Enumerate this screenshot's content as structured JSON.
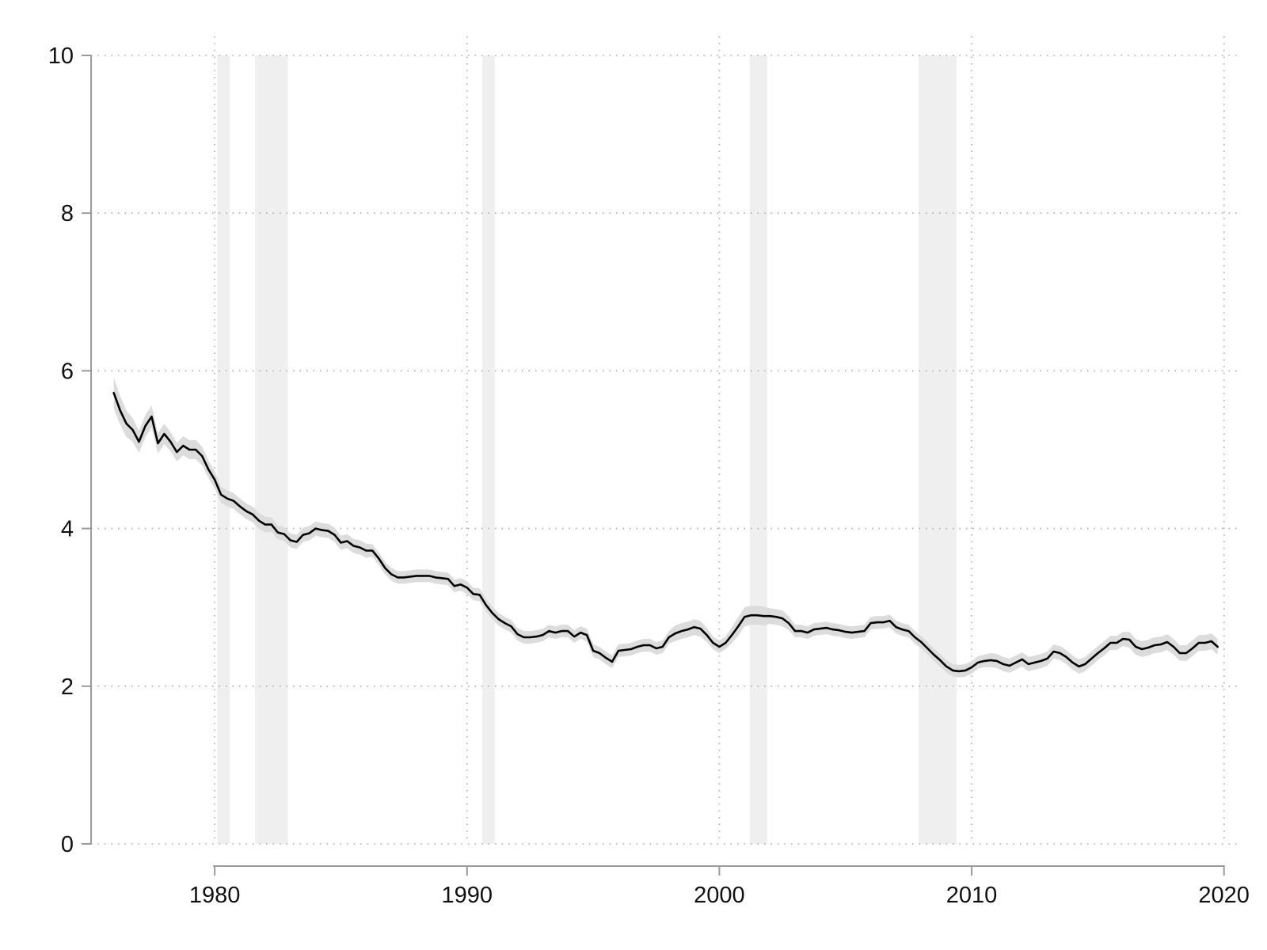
{
  "chart_data": {
    "type": "line",
    "title": "",
    "xlabel": "",
    "ylabel": "",
    "xlim": [
      1975.1,
      2020.7
    ],
    "ylim": [
      0,
      10
    ],
    "grid": true,
    "legend": "none",
    "x_ticks": [
      {
        "value": 1980,
        "label": "1980"
      },
      {
        "value": 1990,
        "label": "1990"
      },
      {
        "value": 2000,
        "label": "2000"
      },
      {
        "value": 2010,
        "label": "2010"
      },
      {
        "value": 2020,
        "label": "2020"
      }
    ],
    "y_ticks": [
      {
        "value": 0,
        "label": "0"
      },
      {
        "value": 2,
        "label": "2"
      },
      {
        "value": 4,
        "label": "4"
      },
      {
        "value": 6,
        "label": "6"
      },
      {
        "value": 8,
        "label": "8"
      },
      {
        "value": 10,
        "label": "10"
      }
    ],
    "shaded_periods": [
      {
        "start": 1980.1,
        "end": 1980.6
      },
      {
        "start": 1981.6,
        "end": 1982.9
      },
      {
        "start": 1990.6,
        "end": 1991.1
      },
      {
        "start": 2001.2,
        "end": 2001.9
      },
      {
        "start": 2007.9,
        "end": 2009.4
      }
    ],
    "series": [
      {
        "x": [
          1976.0,
          1976.25,
          1976.5,
          1976.75,
          1977.0,
          1977.25,
          1977.5,
          1977.75,
          1978.0,
          1978.25,
          1978.5,
          1978.75,
          1979.0,
          1979.25,
          1979.5,
          1979.75,
          1980.0,
          1980.25,
          1980.5,
          1980.75,
          1981.0,
          1981.25,
          1981.5,
          1981.75,
          1982.0,
          1982.25,
          1982.5,
          1982.75,
          1983.0,
          1983.25,
          1983.5,
          1983.75,
          1984.0,
          1984.25,
          1984.5,
          1984.75,
          1985.0,
          1985.25,
          1985.5,
          1985.75,
          1986.0,
          1986.25,
          1986.5,
          1986.75,
          1987.0,
          1987.25,
          1987.5,
          1987.75,
          1988.0,
          1988.25,
          1988.5,
          1988.75,
          1989.0,
          1989.25,
          1989.5,
          1989.75,
          1990.0,
          1990.25,
          1990.5,
          1990.75,
          1991.0,
          1991.25,
          1991.5,
          1991.75,
          1992.0,
          1992.25,
          1992.5,
          1992.75,
          1993.0,
          1993.25,
          1993.5,
          1993.75,
          1994.0,
          1994.25,
          1994.5,
          1994.75,
          1995.0,
          1995.25,
          1995.5,
          1995.75,
          1996.0,
          1996.25,
          1996.5,
          1996.75,
          1997.0,
          1997.25,
          1997.5,
          1997.75,
          1998.0,
          1998.25,
          1998.5,
          1998.75,
          1999.0,
          1999.25,
          1999.5,
          1999.75,
          2000.0,
          2000.25,
          2000.5,
          2000.75,
          2001.0,
          2001.25,
          2001.5,
          2001.75,
          2002.0,
          2002.25,
          2002.5,
          2002.75,
          2003.0,
          2003.25,
          2003.5,
          2003.75,
          2004.0,
          2004.25,
          2004.5,
          2004.75,
          2005.0,
          2005.25,
          2005.5,
          2005.75,
          2006.0,
          2006.25,
          2006.5,
          2006.75,
          2007.0,
          2007.25,
          2007.5,
          2007.75,
          2008.0,
          2008.25,
          2008.5,
          2008.75,
          2009.0,
          2009.25,
          2009.5,
          2009.75,
          2010.0,
          2010.25,
          2010.5,
          2010.75,
          2011.0,
          2011.25,
          2011.5,
          2011.75,
          2012.0,
          2012.25,
          2012.5,
          2012.75,
          2013.0,
          2013.25,
          2013.5,
          2013.75,
          2014.0,
          2014.25,
          2014.5,
          2014.75,
          2015.0,
          2015.25,
          2015.5,
          2015.75,
          2016.0,
          2016.25,
          2016.5,
          2016.75,
          2017.0,
          2017.25,
          2017.5,
          2017.75,
          2018.0,
          2018.25,
          2018.5,
          2018.75,
          2019.0,
          2019.25,
          2019.5,
          2019.75
        ],
        "values": [
          5.72,
          5.5,
          5.33,
          5.25,
          5.1,
          5.3,
          5.42,
          5.08,
          5.2,
          5.1,
          4.97,
          5.05,
          5.0,
          5.0,
          4.92,
          4.75,
          4.62,
          4.43,
          4.38,
          4.35,
          4.28,
          4.22,
          4.18,
          4.1,
          4.05,
          4.05,
          3.95,
          3.93,
          3.85,
          3.83,
          3.92,
          3.94,
          4.0,
          3.98,
          3.97,
          3.92,
          3.82,
          3.84,
          3.78,
          3.76,
          3.72,
          3.72,
          3.62,
          3.5,
          3.42,
          3.38,
          3.38,
          3.39,
          3.4,
          3.4,
          3.4,
          3.38,
          3.37,
          3.36,
          3.27,
          3.29,
          3.25,
          3.17,
          3.16,
          3.03,
          2.93,
          2.85,
          2.8,
          2.76,
          2.66,
          2.62,
          2.62,
          2.63,
          2.65,
          2.7,
          2.68,
          2.7,
          2.7,
          2.63,
          2.68,
          2.65,
          2.45,
          2.42,
          2.36,
          2.31,
          2.45,
          2.46,
          2.47,
          2.5,
          2.52,
          2.52,
          2.48,
          2.5,
          2.62,
          2.67,
          2.7,
          2.72,
          2.75,
          2.73,
          2.65,
          2.55,
          2.5,
          2.55,
          2.65,
          2.76,
          2.88,
          2.9,
          2.9,
          2.89,
          2.89,
          2.88,
          2.86,
          2.8,
          2.7,
          2.7,
          2.68,
          2.72,
          2.73,
          2.74,
          2.72,
          2.71,
          2.69,
          2.68,
          2.69,
          2.7,
          2.8,
          2.81,
          2.81,
          2.83,
          2.75,
          2.72,
          2.7,
          2.62,
          2.56,
          2.48,
          2.4,
          2.33,
          2.25,
          2.2,
          2.19,
          2.2,
          2.24,
          2.3,
          2.32,
          2.33,
          2.32,
          2.28,
          2.26,
          2.3,
          2.34,
          2.28,
          2.3,
          2.32,
          2.35,
          2.44,
          2.42,
          2.37,
          2.3,
          2.25,
          2.28,
          2.35,
          2.42,
          2.48,
          2.55,
          2.55,
          2.6,
          2.59,
          2.5,
          2.47,
          2.49,
          2.52,
          2.53,
          2.56,
          2.5,
          2.42,
          2.42,
          2.48,
          2.55,
          2.55,
          2.57,
          2.5
        ],
        "band_width": [
          0.2,
          0.18,
          0.17,
          0.15,
          0.14,
          0.14,
          0.14,
          0.13,
          0.13,
          0.12,
          0.12,
          0.12,
          0.12,
          0.12,
          0.12,
          0.11,
          0.11,
          0.1,
          0.1,
          0.1,
          0.1,
          0.1,
          0.1,
          0.1,
          0.1,
          0.09,
          0.09,
          0.09,
          0.09,
          0.09,
          0.09,
          0.09,
          0.09,
          0.09,
          0.09,
          0.09,
          0.09,
          0.09,
          0.09,
          0.09,
          0.09,
          0.08,
          0.08,
          0.08,
          0.08,
          0.08,
          0.08,
          0.08,
          0.08,
          0.08,
          0.08,
          0.08,
          0.08,
          0.08,
          0.08,
          0.08,
          0.08,
          0.08,
          0.08,
          0.08,
          0.08,
          0.08,
          0.08,
          0.08,
          0.08,
          0.08,
          0.08,
          0.08,
          0.08,
          0.08,
          0.08,
          0.08,
          0.08,
          0.08,
          0.08,
          0.08,
          0.08,
          0.08,
          0.08,
          0.08,
          0.08,
          0.08,
          0.08,
          0.08,
          0.08,
          0.08,
          0.08,
          0.08,
          0.08,
          0.1,
          0.1,
          0.1,
          0.1,
          0.1,
          0.09,
          0.08,
          0.08,
          0.08,
          0.1,
          0.12,
          0.12,
          0.12,
          0.12,
          0.12,
          0.1,
          0.1,
          0.1,
          0.09,
          0.08,
          0.08,
          0.08,
          0.08,
          0.08,
          0.08,
          0.08,
          0.08,
          0.08,
          0.08,
          0.08,
          0.08,
          0.08,
          0.08,
          0.08,
          0.08,
          0.08,
          0.08,
          0.08,
          0.08,
          0.08,
          0.08,
          0.08,
          0.08,
          0.08,
          0.08,
          0.08,
          0.08,
          0.08,
          0.08,
          0.08,
          0.09,
          0.09,
          0.09,
          0.09,
          0.09,
          0.09,
          0.09,
          0.09,
          0.09,
          0.09,
          0.09,
          0.09,
          0.09,
          0.09,
          0.09,
          0.09,
          0.09,
          0.09,
          0.09,
          0.09,
          0.09,
          0.09,
          0.1,
          0.1,
          0.1,
          0.1,
          0.1,
          0.1,
          0.1,
          0.1,
          0.1,
          0.1,
          0.1,
          0.1,
          0.1,
          0.1,
          0.1
        ]
      }
    ]
  },
  "colors": {
    "line": "#000000",
    "band": "#dcdcdc",
    "shade": "#efefef",
    "axis": "#9a9a9a",
    "grid": "#a8a8a8"
  }
}
